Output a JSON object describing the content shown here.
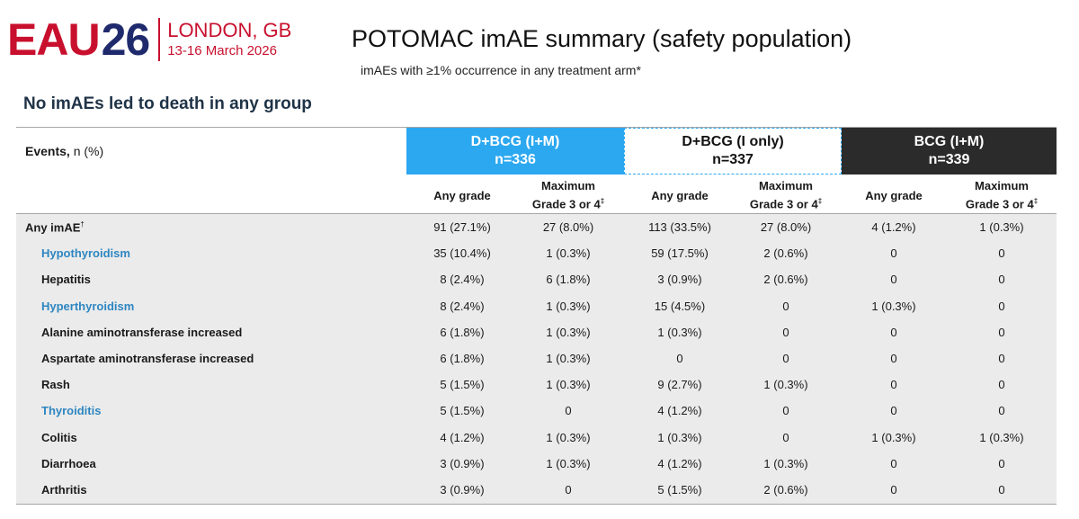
{
  "logo": {
    "mark_eau": "EAU",
    "mark_num": "26",
    "city": "LONDON, GB",
    "dates": "13-16 March 2026"
  },
  "title": "POTOMAC imAE summary (safety population)",
  "subtitle": "imAEs with ≥1% occurrence in any treatment arm*",
  "headline": "No imAEs led to death in any group",
  "colors": {
    "brand_red": "#c8102e",
    "brand_navy": "#1f2a6d",
    "arm1_blue": "#2ba8f0",
    "arm3_dark": "#2b2b2b",
    "term_blue": "#2e86c1",
    "body_grey": "#ebebeb"
  },
  "table": {
    "events_label_bold": "Events,",
    "events_label_rest": " n (%)",
    "arms": [
      {
        "name": "D+BCG (I+M)",
        "n": "n=336"
      },
      {
        "name": "D+BCG (I only)",
        "n": "n=337"
      },
      {
        "name": "BCG (I+M)",
        "n": "n=339"
      }
    ],
    "subheaders": {
      "any_grade": "Any grade",
      "max_line1": "Maximum",
      "max_line2": "Grade 3 or 4",
      "max_mark": "‡"
    },
    "rows": [
      {
        "label": "Any imAE",
        "mark": "†",
        "level": "top",
        "blue": false,
        "values": [
          "91 (27.1%)",
          "27 (8.0%)",
          "113 (33.5%)",
          "27 (8.0%)",
          "4 (1.2%)",
          "1 (0.3%)"
        ]
      },
      {
        "label": "Hypothyroidism",
        "mark": "",
        "level": "ind",
        "blue": true,
        "values": [
          "35 (10.4%)",
          "1 (0.3%)",
          "59 (17.5%)",
          "2 (0.6%)",
          "0",
          "0"
        ]
      },
      {
        "label": "Hepatitis",
        "mark": "",
        "level": "ind",
        "blue": false,
        "values": [
          "8 (2.4%)",
          "6 (1.8%)",
          "3 (0.9%)",
          "2 (0.6%)",
          "0",
          "0"
        ]
      },
      {
        "label": "Hyperthyroidism",
        "mark": "",
        "level": "ind",
        "blue": true,
        "values": [
          "8 (2.4%)",
          "1 (0.3%)",
          "15 (4.5%)",
          "0",
          "1 (0.3%)",
          "0"
        ]
      },
      {
        "label": "Alanine aminotransferase increased",
        "mark": "",
        "level": "ind",
        "blue": false,
        "values": [
          "6 (1.8%)",
          "1 (0.3%)",
          "1 (0.3%)",
          "0",
          "0",
          "0"
        ]
      },
      {
        "label": "Aspartate aminotransferase increased",
        "mark": "",
        "level": "ind",
        "blue": false,
        "values": [
          "6 (1.8%)",
          "1 (0.3%)",
          "0",
          "0",
          "0",
          "0"
        ]
      },
      {
        "label": "Rash",
        "mark": "",
        "level": "ind",
        "blue": false,
        "values": [
          "5 (1.5%)",
          "1 (0.3%)",
          "9 (2.7%)",
          "1 (0.3%)",
          "0",
          "0"
        ]
      },
      {
        "label": "Thyroiditis",
        "mark": "",
        "level": "ind",
        "blue": true,
        "values": [
          "5 (1.5%)",
          "0",
          "4 (1.2%)",
          "0",
          "0",
          "0"
        ]
      },
      {
        "label": "Colitis",
        "mark": "",
        "level": "ind",
        "blue": false,
        "values": [
          "4 (1.2%)",
          "1 (0.3%)",
          "1 (0.3%)",
          "0",
          "1 (0.3%)",
          "1 (0.3%)"
        ]
      },
      {
        "label": "Diarrhoea",
        "mark": "",
        "level": "ind",
        "blue": false,
        "values": [
          "3 (0.9%)",
          "1 (0.3%)",
          "4 (1.2%)",
          "1 (0.3%)",
          "0",
          "0"
        ]
      },
      {
        "label": "Arthritis",
        "mark": "",
        "level": "ind",
        "blue": false,
        "values": [
          "3 (0.9%)",
          "0",
          "5 (1.5%)",
          "2 (0.6%)",
          "0",
          "0"
        ]
      }
    ]
  }
}
